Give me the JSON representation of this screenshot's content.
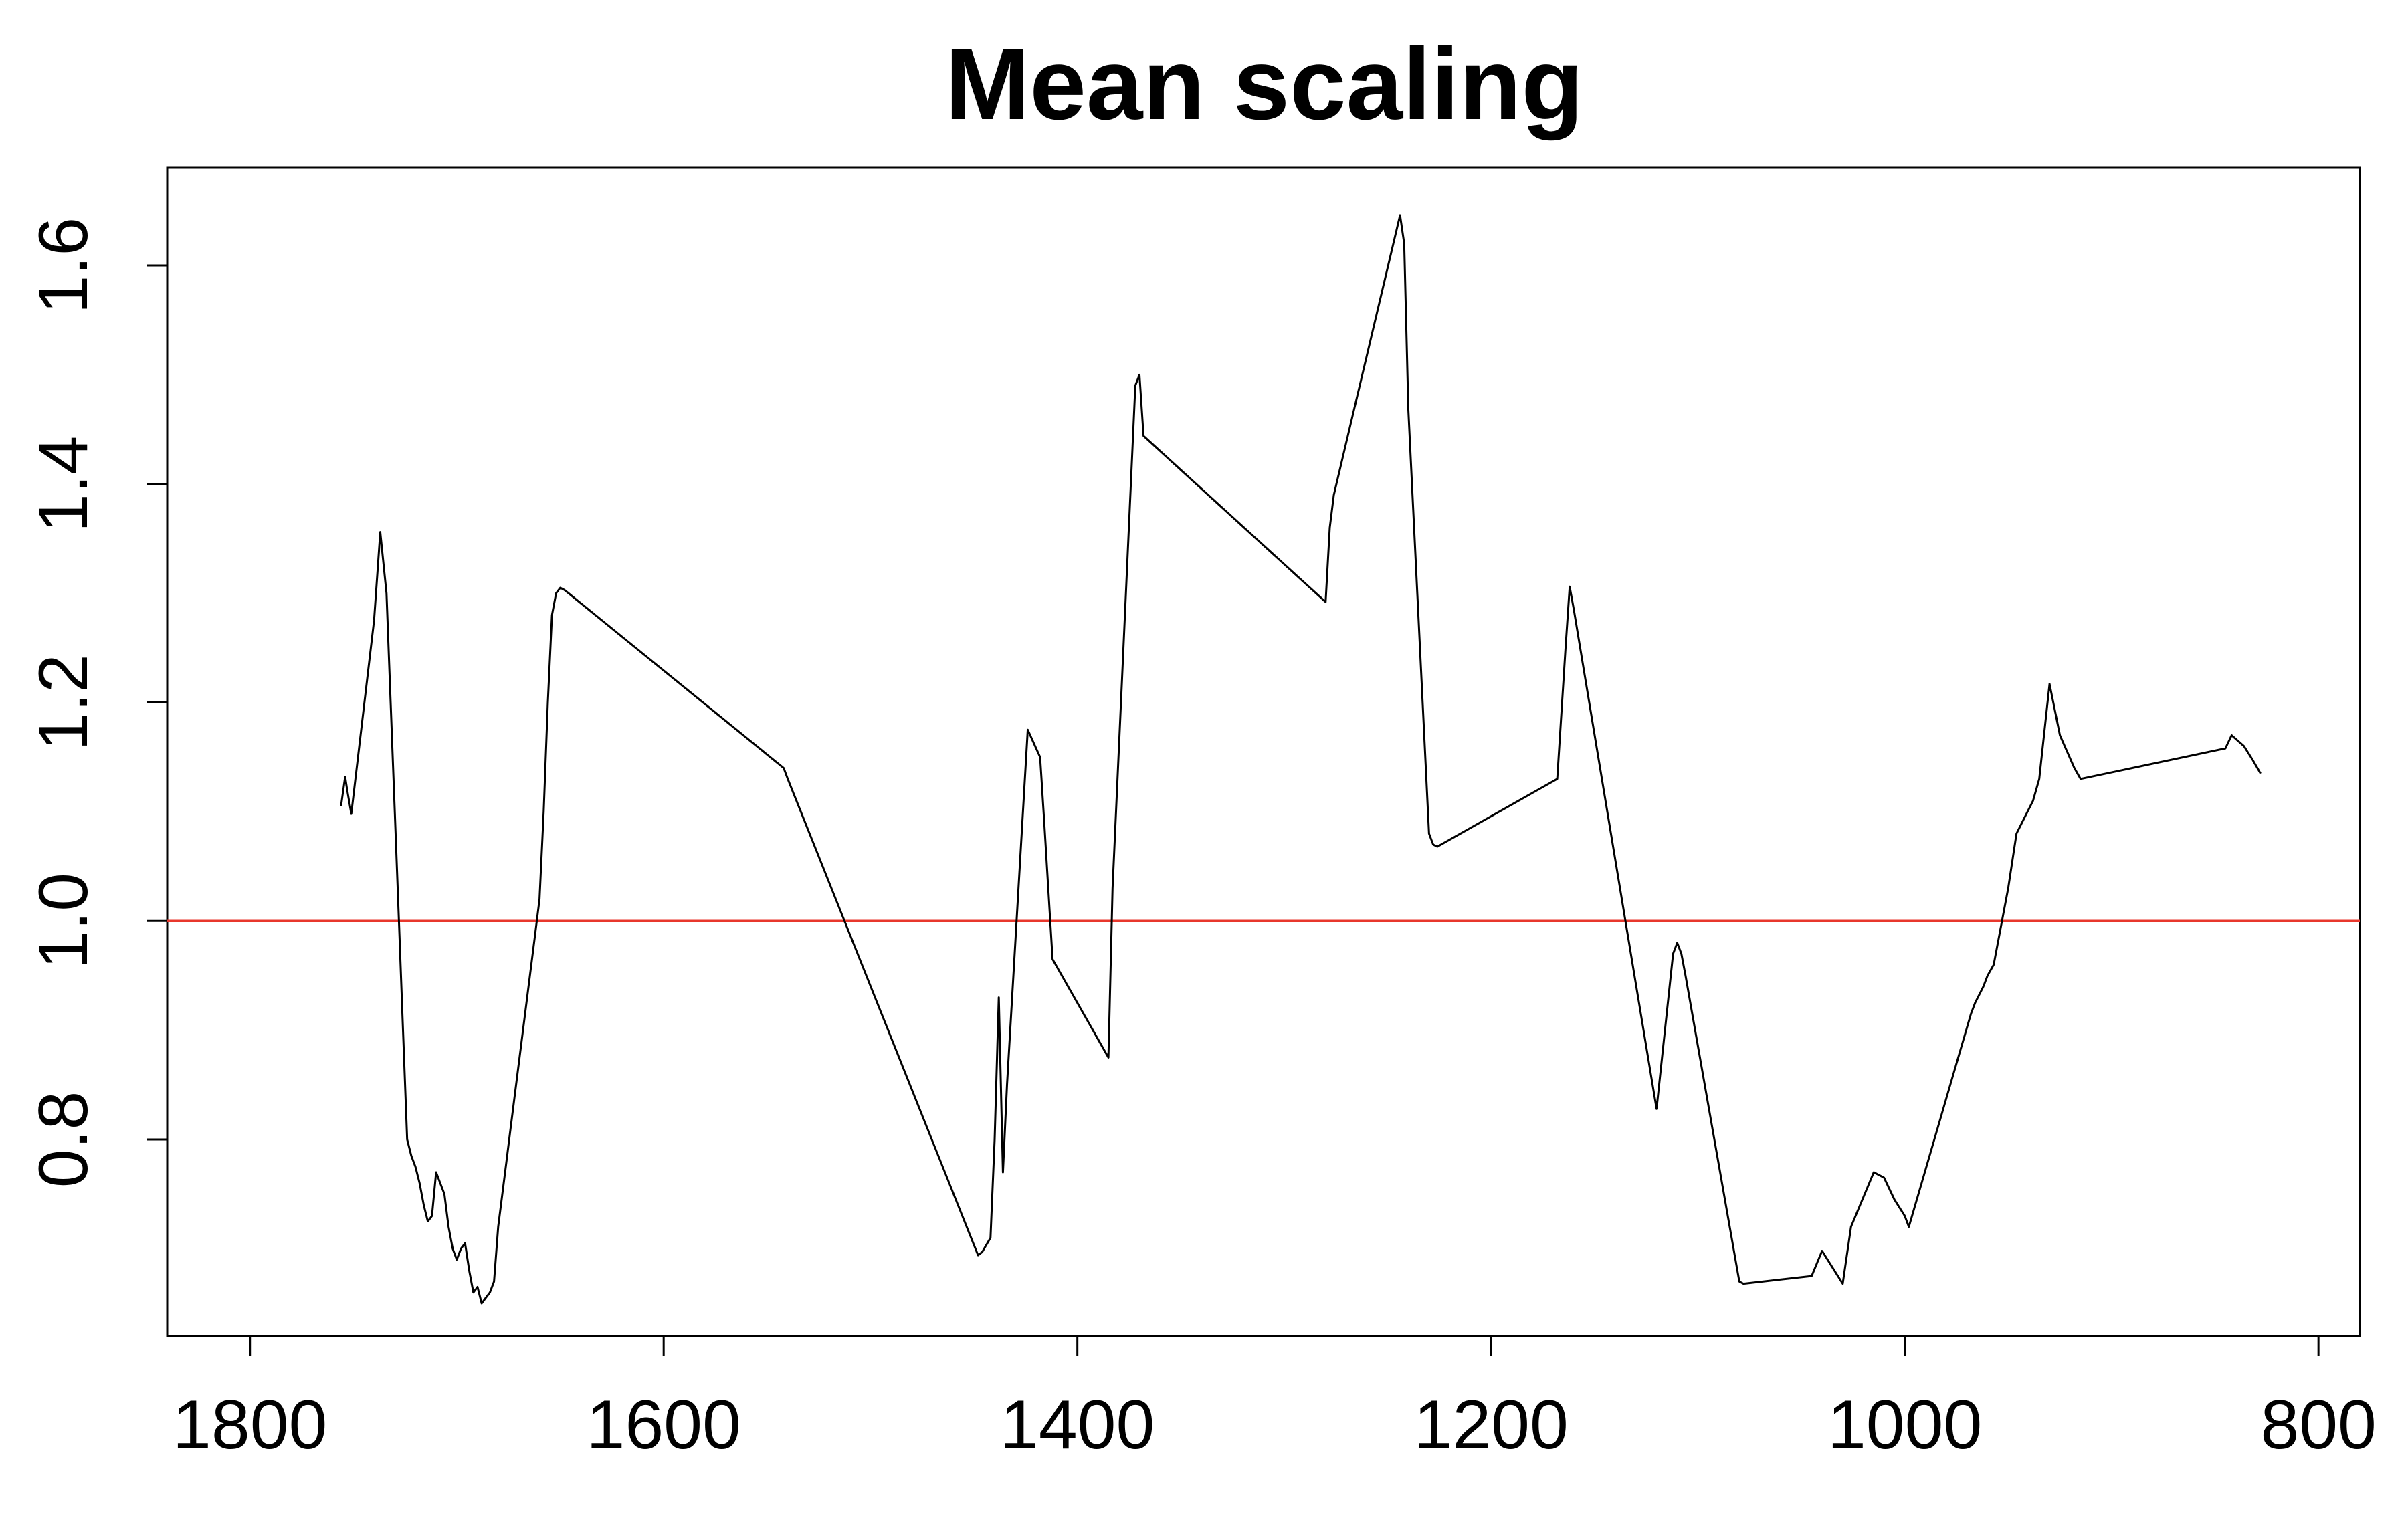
{
  "chart_data": {
    "type": "line",
    "title": "Mean scaling",
    "xlabel": "",
    "ylabel": "",
    "xlim": [
      1840,
      780
    ],
    "ylim": [
      0.62,
      1.69
    ],
    "x_ticks": [
      1800,
      1600,
      1400,
      1200,
      1000,
      800
    ],
    "x_tick_labels": [
      "1800",
      "1600",
      "1400",
      "1200",
      "1000",
      "800"
    ],
    "y_ticks": [
      0.8,
      1.0,
      1.2,
      1.4,
      1.6
    ],
    "y_tick_labels": [
      "0.8",
      "1.0",
      "1.2",
      "1.4",
      "1.6"
    ],
    "grid": false,
    "reference_line": {
      "y": 1.0,
      "color": "#e8372c"
    },
    "series": [
      {
        "color": "#000000",
        "x": [
          1756,
          1754,
          1753,
          1751,
          1740,
          1737,
          1734,
          1732,
          1730,
          1728,
          1726,
          1724,
          1722,
          1720,
          1718,
          1716,
          1714,
          1712,
          1710,
          1708,
          1706,
          1704,
          1702,
          1700,
          1698,
          1696,
          1694,
          1692,
          1690,
          1688,
          1686,
          1684,
          1682,
          1680,
          1678,
          1676,
          1674,
          1672,
          1670,
          1668,
          1666,
          1664,
          1662,
          1660,
          1658,
          1656,
          1654,
          1652,
          1650,
          1648,
          1646,
          1542,
          1540,
          1448,
          1446,
          1442,
          1440,
          1438,
          1436,
          1434,
          1424,
          1418,
          1416,
          1412,
          1385,
          1383,
          1372,
          1370,
          1368,
          1280,
          1278,
          1276,
          1244,
          1242,
          1240,
          1230,
          1228,
          1226,
          1168,
          1164,
          1162,
          1160,
          1120,
          1112,
          1110,
          1108,
          1106,
          1080,
          1078,
          1045,
          1040,
          1030,
          1026,
          1015,
          1010,
          1005,
          1000,
          998,
          968,
          966,
          962,
          960,
          957,
          954,
          950,
          946,
          942,
          938,
          935,
          930,
          925,
          918,
          915,
          845,
          842,
          836,
          832,
          828
        ],
        "y": [
          1.105,
          1.132,
          1.12,
          1.098,
          1.275,
          1.356,
          1.3,
          1.2,
          1.1,
          1.0,
          0.9,
          0.8,
          0.785,
          0.775,
          0.76,
          0.74,
          0.725,
          0.73,
          0.77,
          0.76,
          0.75,
          0.72,
          0.7,
          0.69,
          0.7,
          0.705,
          0.68,
          0.66,
          0.665,
          0.65,
          0.655,
          0.66,
          0.67,
          0.72,
          0.75,
          0.78,
          0.81,
          0.84,
          0.87,
          0.9,
          0.93,
          0.96,
          0.99,
          1.02,
          1.1,
          1.2,
          1.28,
          1.3,
          1.305,
          1.303,
          1.3,
          1.14,
          1.13,
          0.694,
          0.697,
          0.71,
          0.8,
          0.93,
          0.77,
          0.85,
          1.175,
          1.15,
          1.09,
          0.965,
          0.875,
          1.03,
          1.49,
          1.5,
          1.444,
          1.292,
          1.36,
          1.39,
          1.646,
          1.62,
          1.468,
          1.08,
          1.07,
          1.068,
          1.13,
          1.25,
          1.306,
          1.285,
          0.828,
          0.97,
          0.98,
          0.97,
          0.95,
          0.67,
          0.668,
          0.675,
          0.698,
          0.668,
          0.72,
          0.77,
          0.765,
          0.745,
          0.73,
          0.72,
          0.915,
          0.925,
          0.94,
          0.95,
          0.96,
          0.99,
          1.03,
          1.08,
          1.095,
          1.11,
          1.13,
          1.217,
          1.17,
          1.14,
          1.13,
          1.158,
          1.17,
          1.16,
          1.148,
          1.135
        ]
      }
    ]
  }
}
